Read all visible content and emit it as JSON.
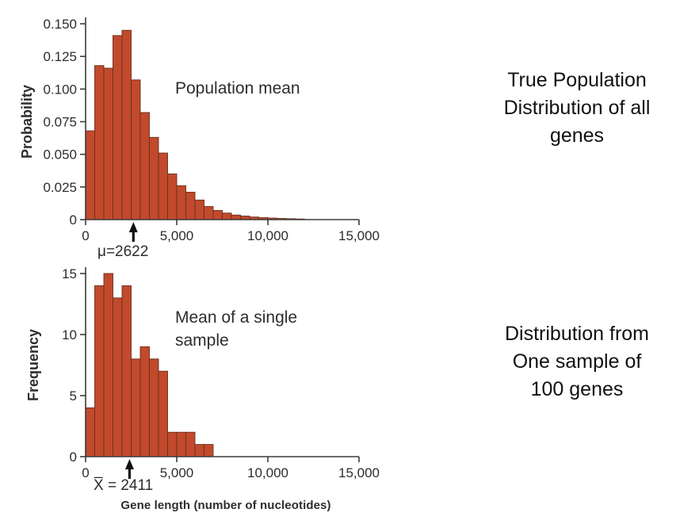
{
  "figure": {
    "xaxis_label": "Gene length (number of nucleotides)",
    "right_captions": [
      {
        "text": "True Population\nDistribution of all\ngenes"
      },
      {
        "text": "Distribution from\nOne sample of\n100 genes"
      }
    ]
  },
  "colors": {
    "bar_fill": "#C14A2C",
    "bar_stroke": "#6B2D1C",
    "axis": "#3C3C3C",
    "text": "#2D2D2D",
    "arrow": "#111111"
  },
  "chart_data": [
    {
      "type": "bar",
      "title": "Population mean",
      "ylabel": "Probability",
      "bin_start": 0,
      "bin_width": 500,
      "values": [
        0.068,
        0.118,
        0.116,
        0.141,
        0.145,
        0.107,
        0.082,
        0.063,
        0.051,
        0.035,
        0.026,
        0.021,
        0.015,
        0.01,
        0.007,
        0.005,
        0.0035,
        0.0027,
        0.002,
        0.0015,
        0.0012,
        0.0009,
        0.0007,
        0.0005
      ],
      "xlim": [
        0,
        15000
      ],
      "ylim": [
        0,
        0.15
      ],
      "yticks": [
        0,
        0.025,
        0.05,
        0.075,
        0.1,
        0.125,
        0.15
      ],
      "ytick_labels": [
        "0",
        "0.025",
        "0.050",
        "0.075",
        "0.100",
        "0.125",
        "0.150"
      ],
      "xticks": [
        0,
        5000,
        10000,
        15000
      ],
      "xtick_labels": [
        "0",
        "5,000",
        "10,000",
        "15,000"
      ],
      "grid": false,
      "mean_marker": {
        "x": 2622,
        "label": "μ=2622"
      }
    },
    {
      "type": "bar",
      "title": "Mean of a single\nsample",
      "ylabel": "Frequency",
      "bin_start": 0,
      "bin_width": 500,
      "values": [
        4,
        14,
        15,
        13,
        14,
        8,
        9,
        8,
        7,
        2,
        2,
        2,
        1,
        1
      ],
      "xlim": [
        0,
        15000
      ],
      "ylim": [
        0,
        15
      ],
      "yticks": [
        0,
        5,
        10,
        15
      ],
      "ytick_labels": [
        "0",
        "5",
        "10",
        "15"
      ],
      "xticks": [
        0,
        5000,
        10000,
        15000
      ],
      "xtick_labels": [
        "0",
        "5,000",
        "10,000",
        "15,000"
      ],
      "grid": false,
      "mean_marker": {
        "x": 2411,
        "label": "X̅ = 2411"
      }
    }
  ]
}
